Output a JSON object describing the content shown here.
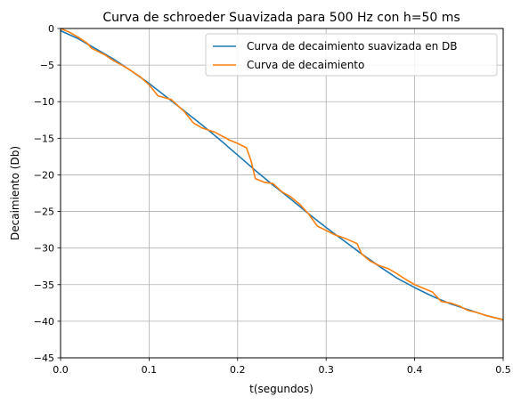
{
  "chart_data": {
    "type": "line",
    "title": "Curva de schroeder Suavizada para 500 Hz con h=50 ms",
    "xlabel": "t(segundos)",
    "ylabel": "Decaimiento (Db)",
    "xlim": [
      0.0,
      0.5
    ],
    "ylim": [
      -45,
      0
    ],
    "xticks": [
      0.0,
      0.1,
      0.2,
      0.3,
      0.4,
      0.5
    ],
    "xtick_labels": [
      "0.0",
      "0.1",
      "0.2",
      "0.3",
      "0.4",
      "0.5"
    ],
    "yticks": [
      0,
      -5,
      -10,
      -15,
      -20,
      -25,
      -30,
      -35,
      -40,
      -45
    ],
    "ytick_labels": [
      "0",
      "−5",
      "−10",
      "−15",
      "−20",
      "−25",
      "−30",
      "−35",
      "−40",
      "−45"
    ],
    "grid": true,
    "legend_position": "top-right",
    "series": [
      {
        "name": "Curva de decaimiento suavizada en DB",
        "color": "#1f77b4",
        "x": [
          0.0,
          0.02,
          0.04,
          0.06,
          0.08,
          0.1,
          0.12,
          0.14,
          0.16,
          0.18,
          0.2,
          0.22,
          0.24,
          0.26,
          0.28,
          0.3,
          0.32,
          0.34,
          0.36,
          0.38,
          0.4,
          0.42,
          0.44,
          0.46,
          0.48,
          0.5
        ],
        "y": [
          -0.3,
          -1.4,
          -2.8,
          -4.2,
          -5.8,
          -7.5,
          -9.4,
          -11.3,
          -13.2,
          -15.2,
          -17.3,
          -19.4,
          -21.4,
          -23.3,
          -25.3,
          -27.2,
          -29.0,
          -30.8,
          -32.5,
          -34.1,
          -35.4,
          -36.6,
          -37.6,
          -38.4,
          -39.2,
          -39.8
        ]
      },
      {
        "name": "Curva de decaimiento",
        "color": "#ff7f0e",
        "x": [
          0.0,
          0.01,
          0.02,
          0.03,
          0.035,
          0.05,
          0.06,
          0.075,
          0.09,
          0.1,
          0.11,
          0.125,
          0.14,
          0.15,
          0.16,
          0.175,
          0.19,
          0.2,
          0.21,
          0.215,
          0.22,
          0.23,
          0.24,
          0.25,
          0.26,
          0.27,
          0.28,
          0.29,
          0.3,
          0.31,
          0.32,
          0.335,
          0.34,
          0.35,
          0.36,
          0.37,
          0.38,
          0.39,
          0.4,
          0.41,
          0.42,
          0.43,
          0.44,
          0.45,
          0.46,
          0.47,
          0.48,
          0.49,
          0.5
        ],
        "y": [
          0.0,
          -0.5,
          -1.2,
          -2.0,
          -2.7,
          -3.6,
          -4.4,
          -5.4,
          -6.6,
          -7.7,
          -9.2,
          -9.7,
          -11.4,
          -12.9,
          -13.6,
          -14.2,
          -15.2,
          -15.7,
          -16.3,
          -18.0,
          -20.5,
          -21.0,
          -21.2,
          -22.3,
          -23.0,
          -24.0,
          -25.3,
          -27.0,
          -27.6,
          -28.2,
          -28.6,
          -29.4,
          -30.8,
          -31.8,
          -32.4,
          -32.8,
          -33.5,
          -34.3,
          -35.0,
          -35.5,
          -36.0,
          -37.3,
          -37.5,
          -37.9,
          -38.5,
          -38.8,
          -39.2,
          -39.5,
          -39.8
        ]
      }
    ]
  }
}
